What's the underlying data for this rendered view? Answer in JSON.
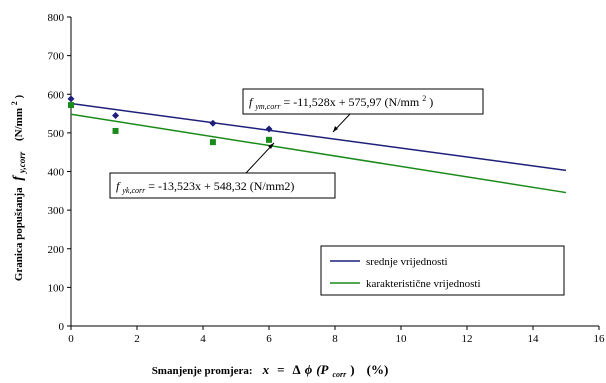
{
  "chart_data": {
    "type": "scatter",
    "ylabel": "Granica popuštanja",
    "ylabel_symbol": "f",
    "ylabel_sub": "y,corr",
    "ylabel_unit_open": "(N/mm",
    "ylabel_unit_sup": "2",
    "ylabel_unit_close": ")",
    "xlabel": "Smanjenje promjera:",
    "xlabel_formula_var": "x",
    "xlabel_formula_eq": "=",
    "xlabel_formula_delta": "Δ",
    "xlabel_formula_phi": "ϕ",
    "xlabel_formula_P_open": "(P",
    "xlabel_formula_P_sub": "corr",
    "xlabel_formula_P_close": ")",
    "xlabel_unit": "(%)",
    "xlim": [
      0,
      16
    ],
    "ylim": [
      0,
      800
    ],
    "xticks": [
      "0",
      "2",
      "4",
      "6",
      "8",
      "10",
      "12",
      "14",
      "16"
    ],
    "yticks": [
      "0",
      "100",
      "200",
      "300",
      "400",
      "500",
      "600",
      "700",
      "800"
    ],
    "grid": false,
    "legend_position": "bottom-right",
    "series": [
      {
        "name": "srednje vrijednosti",
        "color": "#1f1f7a",
        "marker": "diamond",
        "points": [
          [
            0,
            588
          ],
          [
            1.35,
            545
          ],
          [
            4.3,
            525
          ],
          [
            6.0,
            510
          ]
        ],
        "fit": {
          "slope": -11.528,
          "intercept": 575.97,
          "x_range": [
            0,
            15
          ]
        },
        "equation_prefix": "f",
        "equation_sub": "ym,corr",
        "equation_body": " = -11,528x + 575,97 (N/mm",
        "equation_sup": "2",
        "equation_close": ")"
      },
      {
        "name": "karakteristične vrijednosti",
        "color": "#1a8a1a",
        "marker": "square",
        "points": [
          [
            0,
            572
          ],
          [
            1.35,
            505
          ],
          [
            4.3,
            476
          ],
          [
            6.0,
            482
          ]
        ],
        "fit": {
          "slope": -13.523,
          "intercept": 548.32,
          "x_range": [
            0,
            15
          ]
        },
        "equation_prefix": "f",
        "equation_sub": "yk,corr",
        "equation_body": " = -13,523x + 548,32 (N/mm2)",
        "equation_sup": "",
        "equation_close": ""
      }
    ]
  }
}
